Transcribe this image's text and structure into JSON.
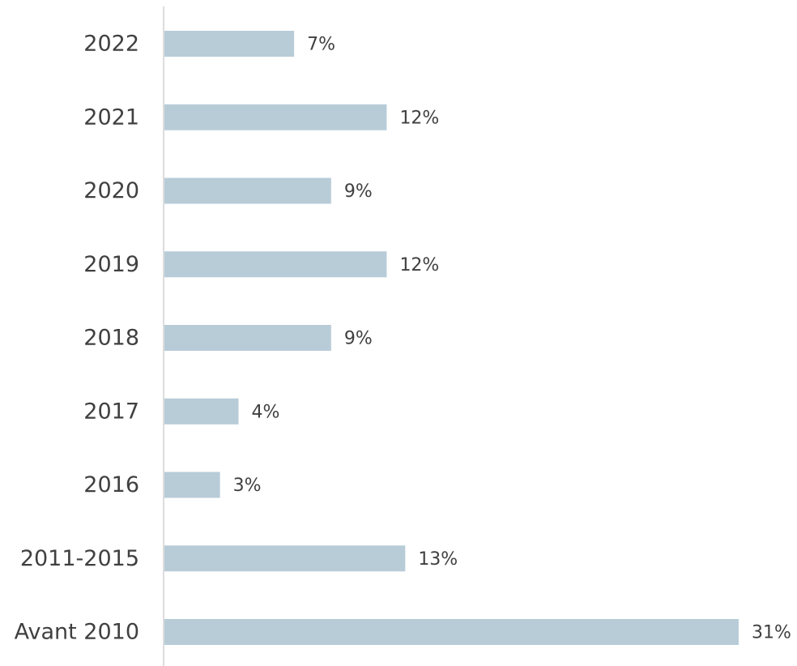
{
  "chart_data": {
    "type": "bar",
    "orientation": "horizontal",
    "categories": [
      "2022",
      "2021",
      "2020",
      "2019",
      "2018",
      "2017",
      "2016",
      "2011-2015",
      "Avant 2010"
    ],
    "values": [
      7,
      12,
      9,
      12,
      9,
      4,
      3,
      13,
      31
    ],
    "value_labels": [
      "7%",
      "12%",
      "9%",
      "12%",
      "9%",
      "4%",
      "3%",
      "13%",
      "31%"
    ],
    "title": "",
    "xlabel": "",
    "ylabel": "",
    "xlim": [
      0,
      31
    ],
    "grid": false,
    "legend": "none",
    "bar_color": "#b8ccd8",
    "axis_color": "#d0d0d0",
    "text_color": "#404040"
  }
}
